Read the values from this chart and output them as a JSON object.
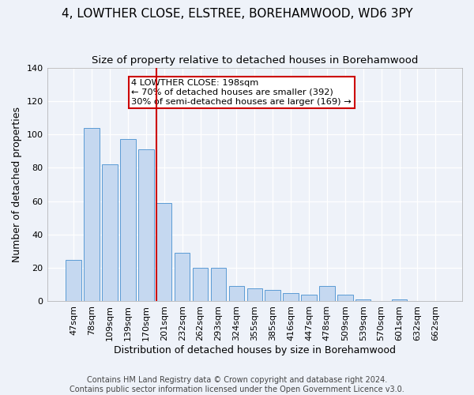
{
  "title": "4, LOWTHER CLOSE, ELSTREE, BOREHAMWOOD, WD6 3PY",
  "subtitle": "Size of property relative to detached houses in Borehamwood",
  "xlabel": "Distribution of detached houses by size in Borehamwood",
  "ylabel": "Number of detached properties",
  "categories": [
    "47sqm",
    "78sqm",
    "109sqm",
    "139sqm",
    "170sqm",
    "201sqm",
    "232sqm",
    "262sqm",
    "293sqm",
    "324sqm",
    "355sqm",
    "385sqm",
    "416sqm",
    "447sqm",
    "478sqm",
    "509sqm",
    "539sqm",
    "570sqm",
    "601sqm",
    "632sqm",
    "662sqm"
  ],
  "values": [
    25,
    104,
    82,
    97,
    91,
    59,
    29,
    20,
    20,
    9,
    8,
    7,
    5,
    4,
    9,
    4,
    1,
    0,
    1,
    0,
    0
  ],
  "bar_color": "#c5d8f0",
  "bar_edge_color": "#5b9bd5",
  "vline_x_index": 5,
  "vline_color": "#cc0000",
  "annotation_lines": [
    "4 LOWTHER CLOSE: 198sqm",
    "← 70% of detached houses are smaller (392)",
    "30% of semi-detached houses are larger (169) →"
  ],
  "annotation_box_color": "#cc0000",
  "ylim": [
    0,
    140
  ],
  "yticks": [
    0,
    20,
    40,
    60,
    80,
    100,
    120,
    140
  ],
  "footer_lines": [
    "Contains HM Land Registry data © Crown copyright and database right 2024.",
    "Contains public sector information licensed under the Open Government Licence v3.0."
  ],
  "background_color": "#eef2f9",
  "title_fontsize": 11,
  "subtitle_fontsize": 9.5,
  "axis_label_fontsize": 9,
  "tick_fontsize": 8,
  "footer_fontsize": 7
}
